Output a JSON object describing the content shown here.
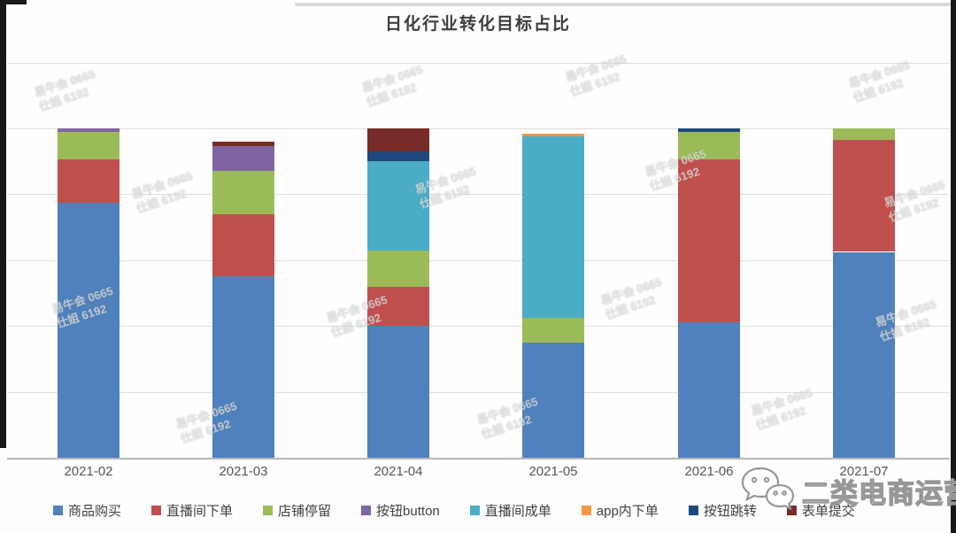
{
  "title": "日化行业转化目标占比",
  "chart_data": {
    "type": "bar",
    "stacked": true,
    "title": "日化行业转化目标占比",
    "categories": [
      "2021-02",
      "2021-03",
      "2021-04",
      "2021-05",
      "2021-06",
      "2021-07"
    ],
    "series": [
      {
        "name": "商品购买",
        "color": "#4F81BD",
        "values": [
          77.5,
          55.0,
          40.0,
          35.0,
          41.0,
          62.5
        ]
      },
      {
        "name": "直播间下单",
        "color": "#C0504D",
        "values": [
          13.0,
          19.0,
          12.0,
          0.0,
          49.5,
          34.0
        ]
      },
      {
        "name": "店铺停留",
        "color": "#9BBB59",
        "values": [
          8.5,
          13.0,
          11.0,
          7.5,
          8.5,
          3.5
        ]
      },
      {
        "name": "按钮button",
        "color": "#8064A2",
        "values": [
          1.0,
          7.5,
          0.0,
          0.0,
          0.0,
          0.0
        ]
      },
      {
        "name": "直播间成单",
        "color": "#4BACC6",
        "values": [
          0.0,
          0.0,
          27.0,
          55.0,
          0.0,
          0.0
        ]
      },
      {
        "name": "app内下单",
        "color": "#F79646",
        "values": [
          0.0,
          0.0,
          0.0,
          1.0,
          0.0,
          0.0
        ]
      },
      {
        "name": "按钮跳转",
        "color": "#1F497D",
        "values": [
          0.0,
          0.0,
          3.0,
          0.0,
          1.0,
          0.0
        ]
      },
      {
        "name": "表单提交",
        "color": "#772C2A",
        "values": [
          0.0,
          1.5,
          7.0,
          0.0,
          0.0,
          0.0
        ]
      }
    ],
    "xlabel": "",
    "ylabel": "",
    "unit": "percent",
    "y_axis": {
      "min": 0,
      "max": 120,
      "gridline_step": 20,
      "tick_labels_visible": false
    },
    "grid": true,
    "legend_position": "bottom"
  },
  "watermark": {
    "tile_line1": "易牛会 0665",
    "tile_line2": "仕姐 6192",
    "brand_text": "二类电商运营",
    "brand_icon": "wechat-icon"
  }
}
